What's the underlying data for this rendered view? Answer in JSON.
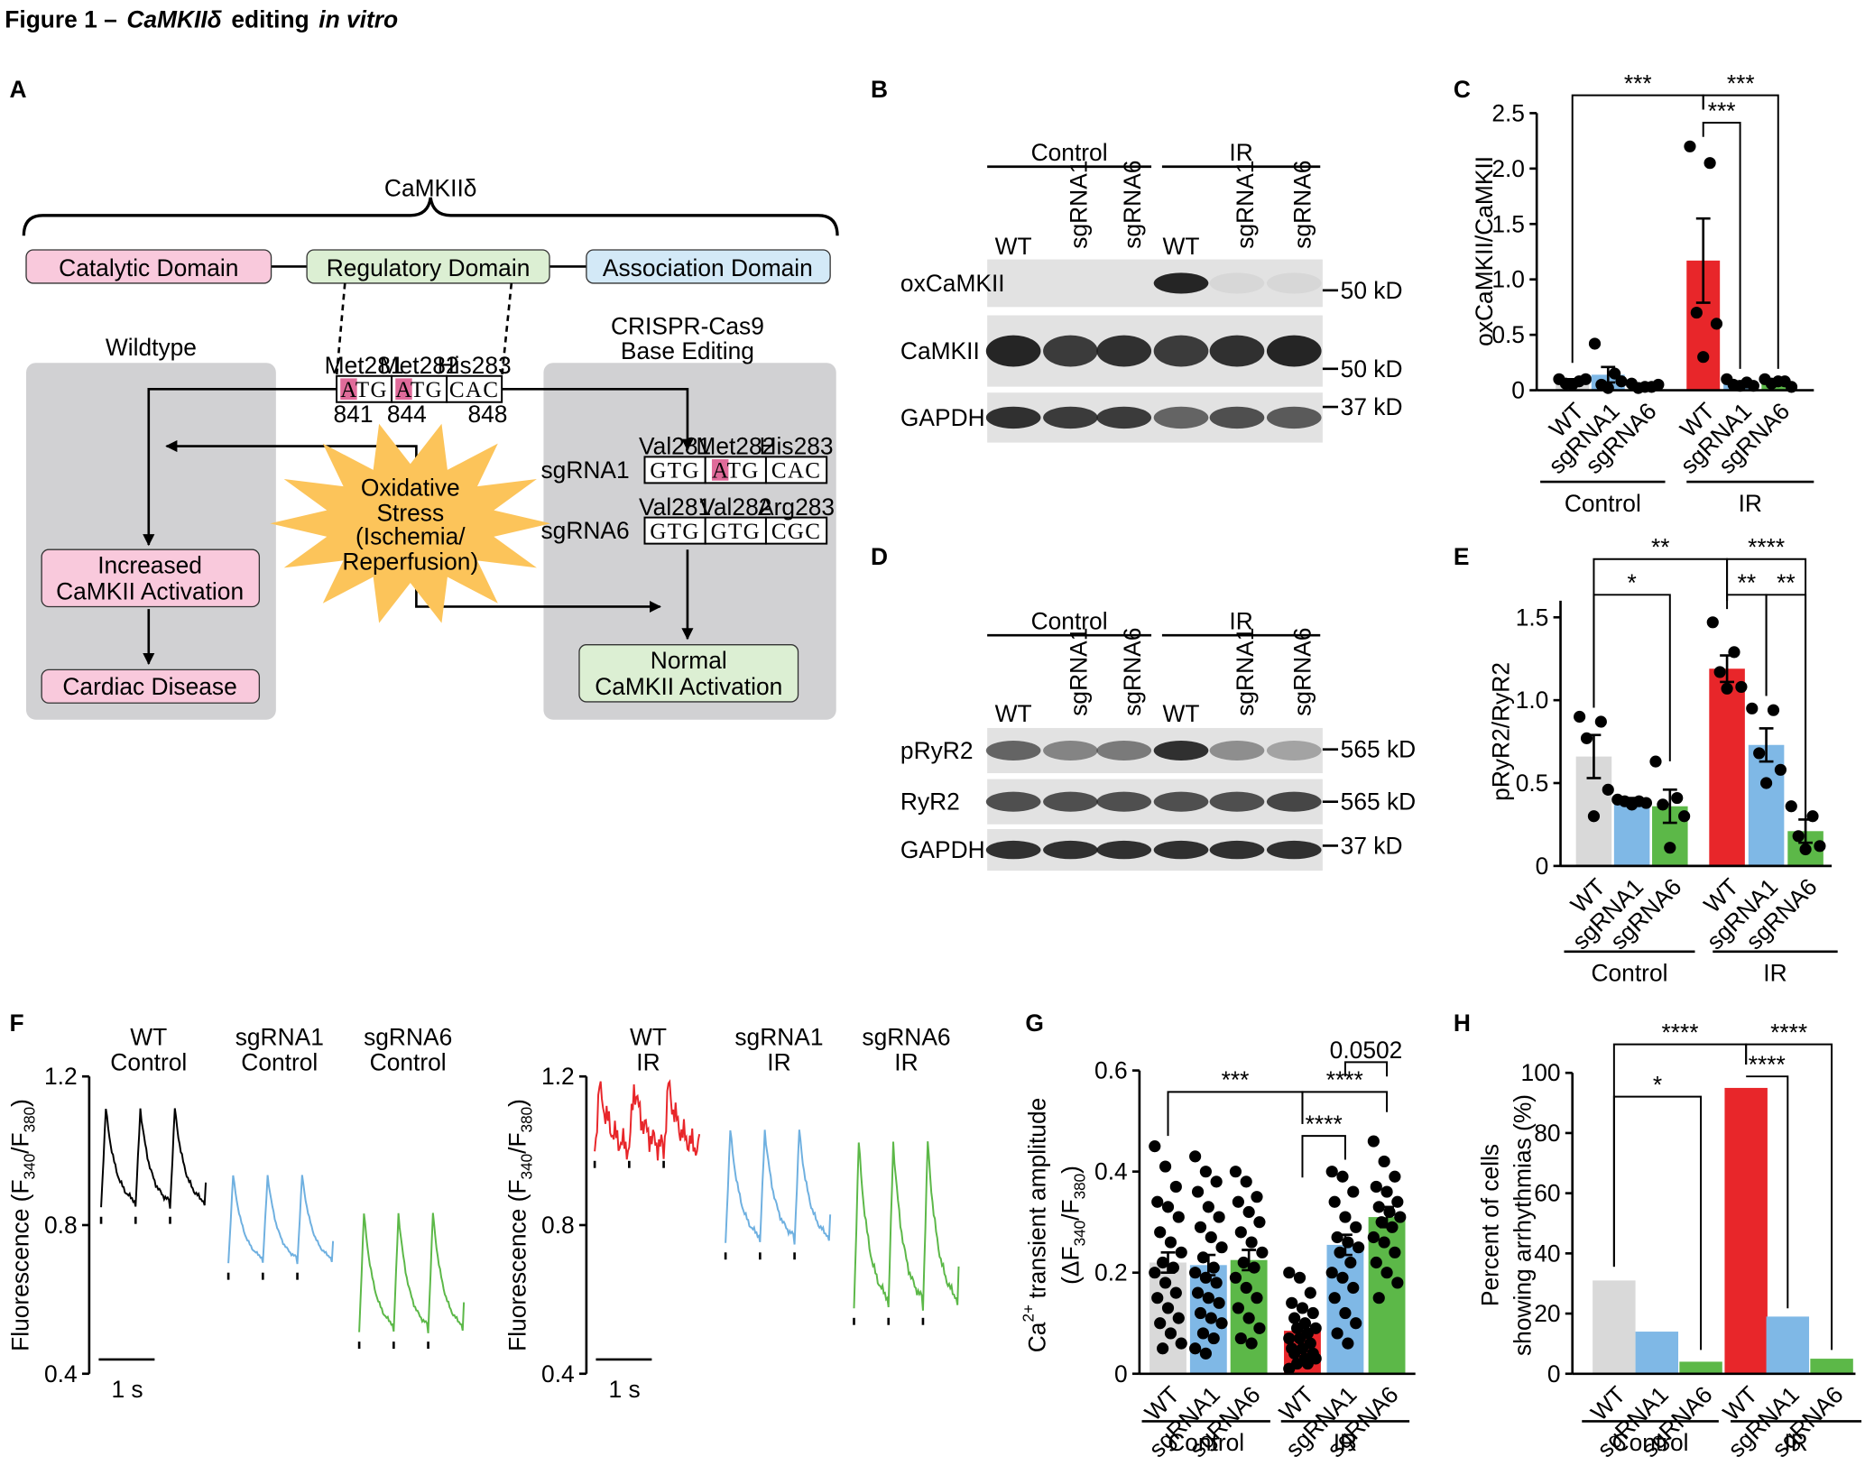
{
  "title": {
    "prefix": "Figure 1 –",
    "gene": "CaMKIIδ",
    "middle": "editing",
    "suffix": "in vitro"
  },
  "panel_labels": [
    "A",
    "B",
    "C",
    "D",
    "E",
    "F",
    "G",
    "H"
  ],
  "diagram": {
    "protein": "CaMKIIδ",
    "domains": [
      "Catalytic Domain",
      "Regulatory Domain",
      "Association Domain"
    ],
    "wildtype_title": "Wildtype",
    "editing_title": [
      "CRISPR-Cas9",
      "Base Editing"
    ],
    "wildtype_sequence": {
      "residues": [
        "Met281",
        "Met282",
        "His283"
      ],
      "codons": [
        "ATG",
        "ATG",
        "CAC"
      ],
      "positions": [
        841,
        844,
        848
      ]
    },
    "edits": [
      {
        "name": "sgRNA1",
        "residues": [
          "Val281",
          "Met282",
          "His283"
        ],
        "codons": [
          "GTG",
          "ATG",
          "CAC"
        ]
      },
      {
        "name": "sgRNA6",
        "residues": [
          "Val281",
          "Val282",
          "Arg283"
        ],
        "codons": [
          "GTG",
          "GTG",
          "CGC"
        ]
      }
    ],
    "stress": [
      "Oxidative",
      "Stress",
      "(Ischemia/",
      "Reperfusion)"
    ],
    "increased": [
      "Increased",
      "CaMKII Activation"
    ],
    "disease": "Cardiac Disease",
    "normal": [
      "Normal",
      "CaMKII Activation"
    ]
  },
  "blots": [
    {
      "groups": [
        "Control",
        "IR"
      ],
      "lanes": [
        "WT",
        "sgRNA1",
        "sgRNA6",
        "WT",
        "sgRNA1",
        "sgRNA6"
      ],
      "rows": [
        "oxCaMKII",
        "CaMKII",
        "GAPDH"
      ],
      "markers": [
        "50 kD",
        "50 kD",
        "37 kD"
      ]
    },
    {
      "groups": [
        "Control",
        "IR"
      ],
      "lanes": [
        "WT",
        "sgRNA1",
        "sgRNA6",
        "WT",
        "sgRNA1",
        "sgRNA6"
      ],
      "rows": [
        "pRyR2",
        "RyR2",
        "GAPDH"
      ],
      "markers": [
        "565 kD",
        "565 kD",
        "37 kD"
      ]
    }
  ],
  "traces": {
    "ylabel": [
      "Fluorescence (F",
      "340",
      "/F",
      "380",
      ")"
    ],
    "ylim": [
      0.4,
      1.2
    ],
    "yticks": [
      0.4,
      0.8,
      1.2
    ],
    "scale_bar": "1 s",
    "panels": [
      {
        "conditions": [
          [
            "WT",
            "Control"
          ],
          [
            "sgRNA1",
            "Control"
          ],
          [
            "sgRNA6",
            "Control"
          ]
        ],
        "colors": [
          "#000000",
          "#6fb0e0",
          "#5cb848"
        ]
      },
      {
        "conditions": [
          [
            "WT",
            "IR"
          ],
          [
            "sgRNA1",
            "IR"
          ],
          [
            "sgRNA6",
            "IR"
          ]
        ],
        "colors": [
          "#e8262a",
          "#6fb0e0",
          "#5cb848"
        ]
      }
    ]
  },
  "chart_data": [
    {
      "type": "bar",
      "ylabel": [
        [
          "oxCaMKII/CaMKII"
        ]
      ],
      "categories": [
        "WT",
        "sgRNA1",
        "sgRNA6",
        "WT",
        "sgRNA1",
        "sgRNA6"
      ],
      "groups": [
        "Control",
        "IR"
      ],
      "values": [
        0.08,
        0.14,
        0.04,
        1.17,
        0.06,
        0.07
      ],
      "errors": [
        0.02,
        0.07,
        0.02,
        0.38,
        0.02,
        0.02
      ],
      "colors": [
        "#d9d9d9",
        "#7fb8e6",
        "#5cb848",
        "#e8262a",
        "#7fb8e6",
        "#5cb848"
      ],
      "points": [
        [
          0.1,
          0.08,
          0.06,
          0.1,
          0.05
        ],
        [
          0.42,
          0.15,
          0.05,
          0.08,
          0.02
        ],
        [
          0.06,
          0.03,
          0.02,
          0.05,
          0.03
        ],
        [
          2.2,
          2.05,
          0.7,
          0.6,
          0.3
        ],
        [
          0.1,
          0.07,
          0.05,
          0.04,
          0.04
        ],
        [
          0.1,
          0.08,
          0.06,
          0.03,
          0.08
        ]
      ],
      "ylim": [
        0,
        2.5
      ],
      "yticks": [
        0,
        0.5,
        {
          "value": 1,
          "label": "1.0"
        },
        1.5,
        {
          "value": 2,
          "label": "2.0"
        },
        2.5
      ],
      "significance": [
        "***",
        "***",
        "***"
      ]
    },
    {
      "type": "bar",
      "ylabel": [
        [
          "pRyR2/RyR2"
        ]
      ],
      "categories": [
        "WT",
        "sgRNA1",
        "sgRNA6",
        "WT",
        "sgRNA1",
        "sgRNA6"
      ],
      "groups": [
        "Control",
        "IR"
      ],
      "values": [
        0.66,
        0.39,
        0.36,
        1.19,
        0.73,
        0.21
      ],
      "errors": [
        0.13,
        0.02,
        0.1,
        0.08,
        0.1,
        0.07
      ],
      "colors": [
        "#d9d9d9",
        "#7fb8e6",
        "#5cb848",
        "#e8262a",
        "#7fb8e6",
        "#5cb848"
      ],
      "points": [
        [
          0.9,
          0.87,
          0.77,
          0.46,
          0.3
        ],
        [
          0.4,
          0.39,
          0.39,
          0.38,
          0.37
        ],
        [
          0.63,
          0.41,
          0.37,
          0.3,
          0.11
        ],
        [
          1.47,
          1.29,
          1.17,
          1.08,
          1.07
        ],
        [
          0.95,
          0.94,
          0.68,
          0.58,
          0.5
        ],
        [
          0.36,
          0.3,
          0.18,
          0.12,
          0.1
        ]
      ],
      "ylim": [
        0,
        1.6
      ],
      "yticks": [
        0,
        0.5,
        {
          "value": 1,
          "label": "1.0"
        },
        1.5
      ],
      "significance": [
        "**",
        "*",
        "****",
        "**",
        "**"
      ]
    },
    {
      "type": "bar",
      "ylabel": [
        [
          "Ca",
          "2+",
          "transient amplitude"
        ],
        [
          "(ΔF",
          "340",
          "/F",
          "380",
          ")"
        ]
      ],
      "categories": [
        "WT",
        "sgRNA1",
        "sgRNA6",
        "WT",
        "sgRNA1",
        "sgRNA6"
      ],
      "groups": [
        "Control",
        "IR"
      ],
      "values": [
        0.22,
        0.215,
        0.225,
        0.085,
        0.255,
        0.31
      ],
      "errors": [
        0.02,
        0.02,
        0.02,
        0.01,
        0.02,
        0.02
      ],
      "colors": [
        "#d9d9d9",
        "#7fb8e6",
        "#5cb848",
        "#e8262a",
        "#7fb8e6",
        "#5cb848"
      ],
      "points": [
        [
          0.45,
          0.41,
          0.37,
          0.34,
          0.33,
          0.31,
          0.28,
          0.26,
          0.24,
          0.22,
          0.21,
          0.2,
          0.18,
          0.16,
          0.15,
          0.13,
          0.11,
          0.1,
          0.08,
          0.06,
          0.05
        ],
        [
          0.43,
          0.4,
          0.38,
          0.36,
          0.33,
          0.31,
          0.29,
          0.27,
          0.25,
          0.23,
          0.21,
          0.2,
          0.19,
          0.18,
          0.16,
          0.15,
          0.14,
          0.12,
          0.11,
          0.1,
          0.08,
          0.07,
          0.05,
          0.04
        ],
        [
          0.4,
          0.38,
          0.35,
          0.34,
          0.32,
          0.3,
          0.28,
          0.26,
          0.24,
          0.22,
          0.21,
          0.19,
          0.17,
          0.15,
          0.13,
          0.11,
          0.09,
          0.07,
          0.06
        ],
        [
          0.2,
          0.19,
          0.16,
          0.14,
          0.13,
          0.12,
          0.11,
          0.1,
          0.09,
          0.09,
          0.08,
          0.07,
          0.07,
          0.06,
          0.05,
          0.05,
          0.04,
          0.04,
          0.03,
          0.03,
          0.02,
          0.02,
          0.01
        ],
        [
          0.4,
          0.39,
          0.36,
          0.34,
          0.31,
          0.29,
          0.27,
          0.26,
          0.25,
          0.24,
          0.22,
          0.2,
          0.19,
          0.17,
          0.15,
          0.12,
          0.1,
          0.08,
          0.06
        ],
        [
          0.46,
          0.42,
          0.39,
          0.37,
          0.36,
          0.34,
          0.33,
          0.32,
          0.31,
          0.3,
          0.29,
          0.27,
          0.26,
          0.24,
          0.22,
          0.2,
          0.18,
          0.15
        ]
      ],
      "ylim": [
        0,
        0.6
      ],
      "yticks": [
        0,
        0.2,
        0.4,
        0.6
      ],
      "significance": [
        "***",
        "****",
        "****",
        "0.0502"
      ]
    },
    {
      "type": "bar",
      "ylabel": [
        [
          "Percent of cells"
        ],
        [
          "showing arrhythmias (%)"
        ]
      ],
      "categories": [
        "WT",
        "sgRNA1",
        "sgRNA6",
        "WT",
        "sgRNA1",
        "sgRNA6"
      ],
      "groups": [
        "Control",
        "IR"
      ],
      "values": [
        31,
        14,
        4,
        95,
        19,
        5
      ],
      "colors": [
        "#d9d9d9",
        "#7fb8e6",
        "#5cb848",
        "#e8262a",
        "#7fb8e6",
        "#5cb848"
      ],
      "ylim": [
        0,
        100
      ],
      "yticks": [
        0,
        20,
        40,
        60,
        80,
        100
      ],
      "significance": [
        "****",
        "*",
        "****",
        "****"
      ]
    }
  ]
}
